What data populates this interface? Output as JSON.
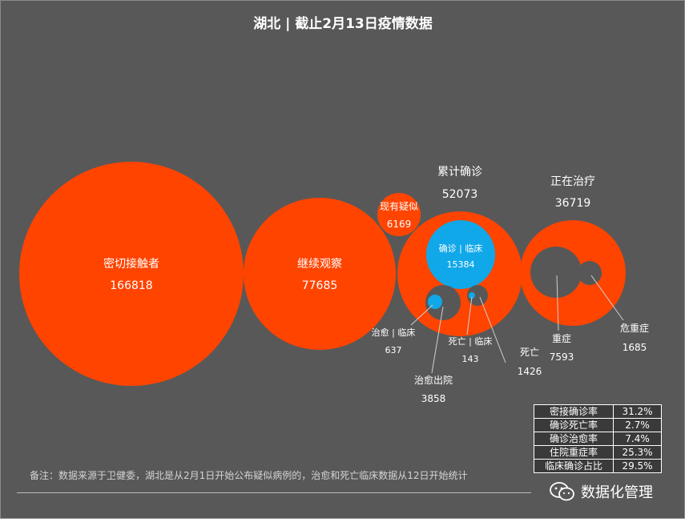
{
  "colors": {
    "background": "#585858",
    "primary": "#ff4400",
    "inner": "#575757",
    "highlight": "#10a8e8",
    "text": "#ffffff",
    "leader": "#cfcfcf"
  },
  "chart_data": {
    "type": "bubble",
    "title": "湖北 | 截止2月13日疫情数据",
    "bubbles": [
      {
        "key": "close_contacts",
        "label": "密切接触者",
        "value": "166818"
      },
      {
        "key": "under_observation",
        "label": "继续观察",
        "value": "77685"
      },
      {
        "key": "suspected",
        "label": "现有疑似",
        "value": "6169"
      },
      {
        "key": "confirmed",
        "label": "累计确诊",
        "value": "52073"
      },
      {
        "key": "in_treatment",
        "label": "正在治疗",
        "value": "36719"
      }
    ],
    "sub_bubbles": [
      {
        "key": "clinical_confirmed",
        "label": "确诊 | 临床",
        "value": "15384"
      },
      {
        "key": "recovered",
        "label": "治愈出院",
        "value": "3858"
      },
      {
        "key": "recovered_clinical",
        "label": "治愈 | 临床",
        "value": "637"
      },
      {
        "key": "deaths",
        "label": "死亡",
        "value": "1426"
      },
      {
        "key": "deaths_clinical",
        "label": "死亡 | 临床",
        "value": "143"
      },
      {
        "key": "severe",
        "label": "重症",
        "value": "7593"
      },
      {
        "key": "critical",
        "label": "危重症",
        "value": "1685"
      }
    ],
    "stats": [
      {
        "label": "密接确诊率",
        "value": "31.2%"
      },
      {
        "label": "确诊死亡率",
        "value": "2.7%"
      },
      {
        "label": "确诊治愈率",
        "value": "7.4%"
      },
      {
        "label": "住院重症率",
        "value": "25.3%"
      },
      {
        "label": "临床确诊占比",
        "value": "29.5%"
      }
    ],
    "note": "备注：数据来源于卫健委，湖北是从2月1日开始公布疑似病例的，治愈和死亡临床数据从12日开始统计"
  },
  "brand": {
    "name": "数据化管理",
    "icon": "wechat-icon"
  }
}
